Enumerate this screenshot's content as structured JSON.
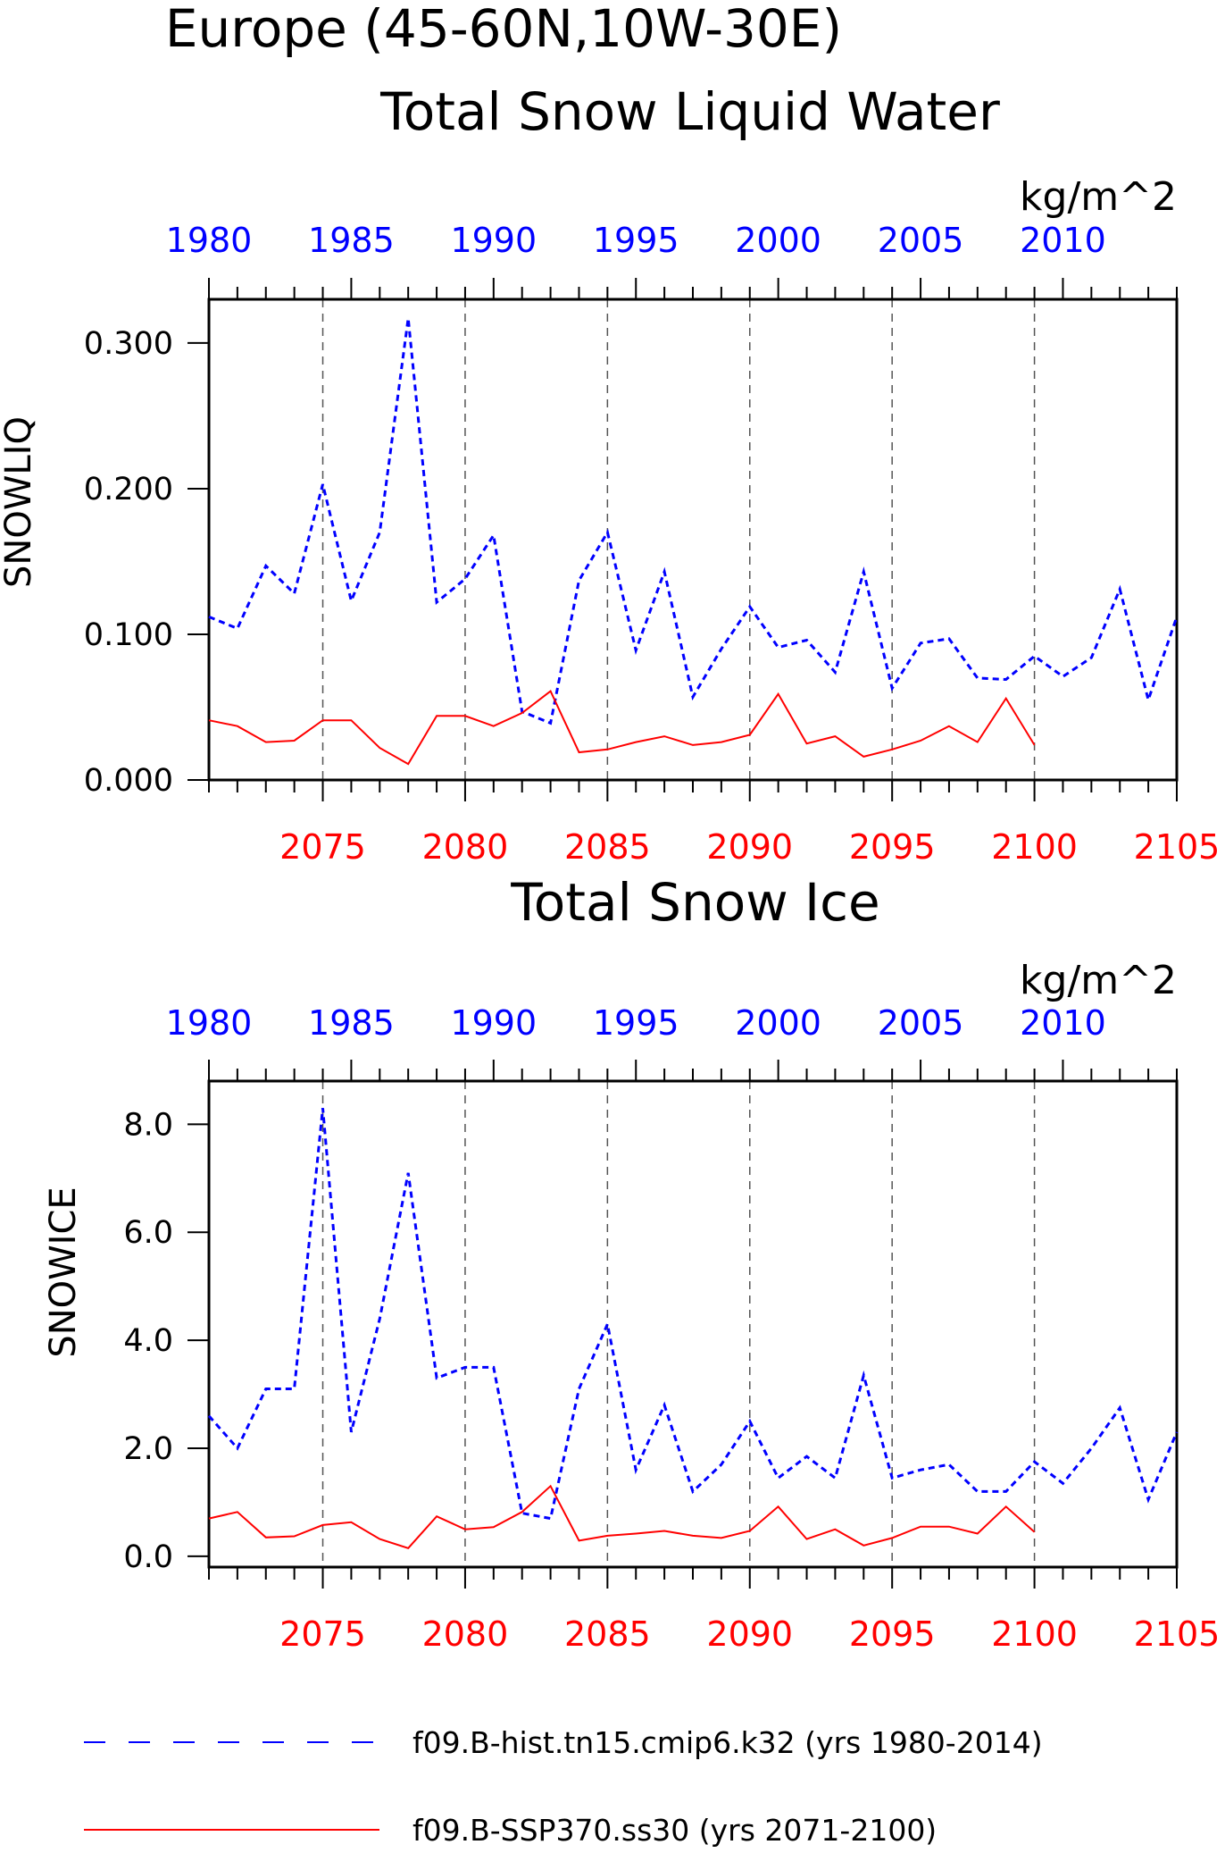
{
  "figure": {
    "title_line1": "Europe (45-60N,10W-30E)",
    "colors": {
      "hist": "#0000ff",
      "ssp": "#ff0000",
      "axes": "#000000",
      "refline": "#555555"
    }
  },
  "legend": [
    {
      "label": "f09.B-hist.tn15.cmip6.k32 (yrs 1980-2014)",
      "color": "#0000ff",
      "style": "dashed"
    },
    {
      "label": "f09.B-SSP370.ss30 (yrs 2071-2100)",
      "color": "#ff0000",
      "style": "solid"
    }
  ],
  "chart_data": [
    {
      "type": "line",
      "title": "Total Snow Liquid Water",
      "units": "kg/m^2",
      "ylabel": "SNOWLIQ",
      "ylim": [
        0,
        0.33
      ],
      "yticks": [
        0.0,
        0.1,
        0.2,
        0.3
      ],
      "ytick_labels": [
        "0.000",
        "0.100",
        "0.200",
        "0.300"
      ],
      "x_bottom": {
        "range": [
          2071,
          2105
        ],
        "ticks": [
          2075,
          2080,
          2085,
          2090,
          2095,
          2100,
          2105
        ],
        "color": "#ff0000"
      },
      "x_top": {
        "range": [
          1980,
          2014
        ],
        "ticks": [
          1980,
          1985,
          1990,
          1995,
          2000,
          2005,
          2010
        ],
        "color": "#0000ff"
      },
      "reference_lines": [
        2075,
        2080,
        2085,
        2090,
        2095,
        2100
      ],
      "series": [
        {
          "name": "f09.B-hist.tn15.cmip6.k32 (yrs 1980-2014)",
          "axis": "top",
          "color": "#0000ff",
          "style": "dashed",
          "x": [
            1980,
            1981,
            1982,
            1983,
            1984,
            1985,
            1986,
            1987,
            1988,
            1989,
            1990,
            1991,
            1992,
            1993,
            1994,
            1995,
            1996,
            1997,
            1998,
            1999,
            2000,
            2001,
            2002,
            2003,
            2004,
            2005,
            2006,
            2007,
            2008,
            2009,
            2010,
            2011,
            2012,
            2013,
            2014
          ],
          "values": [
            0.112,
            0.104,
            0.147,
            0.128,
            0.203,
            0.123,
            0.17,
            0.317,
            0.122,
            0.138,
            0.168,
            0.047,
            0.039,
            0.137,
            0.17,
            0.089,
            0.143,
            0.057,
            0.09,
            0.119,
            0.091,
            0.096,
            0.074,
            0.143,
            0.063,
            0.094,
            0.097,
            0.07,
            0.069,
            0.085,
            0.071,
            0.084,
            0.131,
            0.055,
            0.112
          ]
        },
        {
          "name": "f09.B-SSP370.ss30 (yrs 2071-2100)",
          "axis": "bottom",
          "color": "#ff0000",
          "style": "solid",
          "x": [
            2071,
            2072,
            2073,
            2074,
            2075,
            2076,
            2077,
            2078,
            2079,
            2080,
            2081,
            2082,
            2083,
            2084,
            2085,
            2086,
            2087,
            2088,
            2089,
            2090,
            2091,
            2092,
            2093,
            2094,
            2095,
            2096,
            2097,
            2098,
            2099,
            2100
          ],
          "values": [
            0.041,
            0.037,
            0.026,
            0.027,
            0.041,
            0.041,
            0.022,
            0.011,
            0.044,
            0.044,
            0.037,
            0.046,
            0.061,
            0.019,
            0.021,
            0.026,
            0.03,
            0.024,
            0.026,
            0.031,
            0.059,
            0.025,
            0.03,
            0.016,
            0.021,
            0.027,
            0.037,
            0.026,
            0.056,
            0.024
          ]
        }
      ]
    },
    {
      "type": "line",
      "title": "Total Snow Ice",
      "units": "kg/m^2",
      "ylabel": "SNOWICE",
      "ylim": [
        -0.2,
        8.8
      ],
      "yticks": [
        0.0,
        2.0,
        4.0,
        6.0,
        8.0
      ],
      "ytick_labels": [
        "0.0",
        "2.0",
        "4.0",
        "6.0",
        "8.0"
      ],
      "x_bottom": {
        "range": [
          2071,
          2105
        ],
        "ticks": [
          2075,
          2080,
          2085,
          2090,
          2095,
          2100,
          2105
        ],
        "color": "#ff0000"
      },
      "x_top": {
        "range": [
          1980,
          2014
        ],
        "ticks": [
          1980,
          1985,
          1990,
          1995,
          2000,
          2005,
          2010
        ],
        "color": "#0000ff"
      },
      "reference_lines": [
        2075,
        2080,
        2085,
        2090,
        2095,
        2100
      ],
      "series": [
        {
          "name": "f09.B-hist.tn15.cmip6.k32 (yrs 1980-2014)",
          "axis": "top",
          "color": "#0000ff",
          "style": "dashed",
          "x": [
            1980,
            1981,
            1982,
            1983,
            1984,
            1985,
            1986,
            1987,
            1988,
            1989,
            1990,
            1991,
            1992,
            1993,
            1994,
            1995,
            1996,
            1997,
            1998,
            1999,
            2000,
            2001,
            2002,
            2003,
            2004,
            2005,
            2006,
            2007,
            2008,
            2009,
            2010,
            2011,
            2012,
            2013,
            2014
          ],
          "values": [
            2.6,
            2.0,
            3.1,
            3.1,
            8.3,
            2.3,
            4.4,
            7.1,
            3.3,
            3.5,
            3.5,
            0.8,
            0.7,
            3.1,
            4.3,
            1.6,
            2.8,
            1.2,
            1.7,
            2.5,
            1.45,
            1.85,
            1.45,
            3.35,
            1.45,
            1.6,
            1.7,
            1.2,
            1.2,
            1.75,
            1.35,
            2.0,
            2.75,
            1.05,
            2.3
          ]
        },
        {
          "name": "f09.B-SSP370.ss30 (yrs 2071-2100)",
          "axis": "bottom",
          "color": "#ff0000",
          "style": "solid",
          "x": [
            2071,
            2072,
            2073,
            2074,
            2075,
            2076,
            2077,
            2078,
            2079,
            2080,
            2081,
            2082,
            2083,
            2084,
            2085,
            2086,
            2087,
            2088,
            2089,
            2090,
            2091,
            2092,
            2093,
            2094,
            2095,
            2096,
            2097,
            2098,
            2099,
            2100
          ],
          "values": [
            0.7,
            0.82,
            0.35,
            0.37,
            0.58,
            0.63,
            0.32,
            0.15,
            0.74,
            0.5,
            0.54,
            0.82,
            1.3,
            0.29,
            0.38,
            0.42,
            0.47,
            0.38,
            0.34,
            0.47,
            0.92,
            0.32,
            0.5,
            0.2,
            0.34,
            0.55,
            0.55,
            0.42,
            0.92,
            0.45
          ]
        }
      ]
    }
  ]
}
